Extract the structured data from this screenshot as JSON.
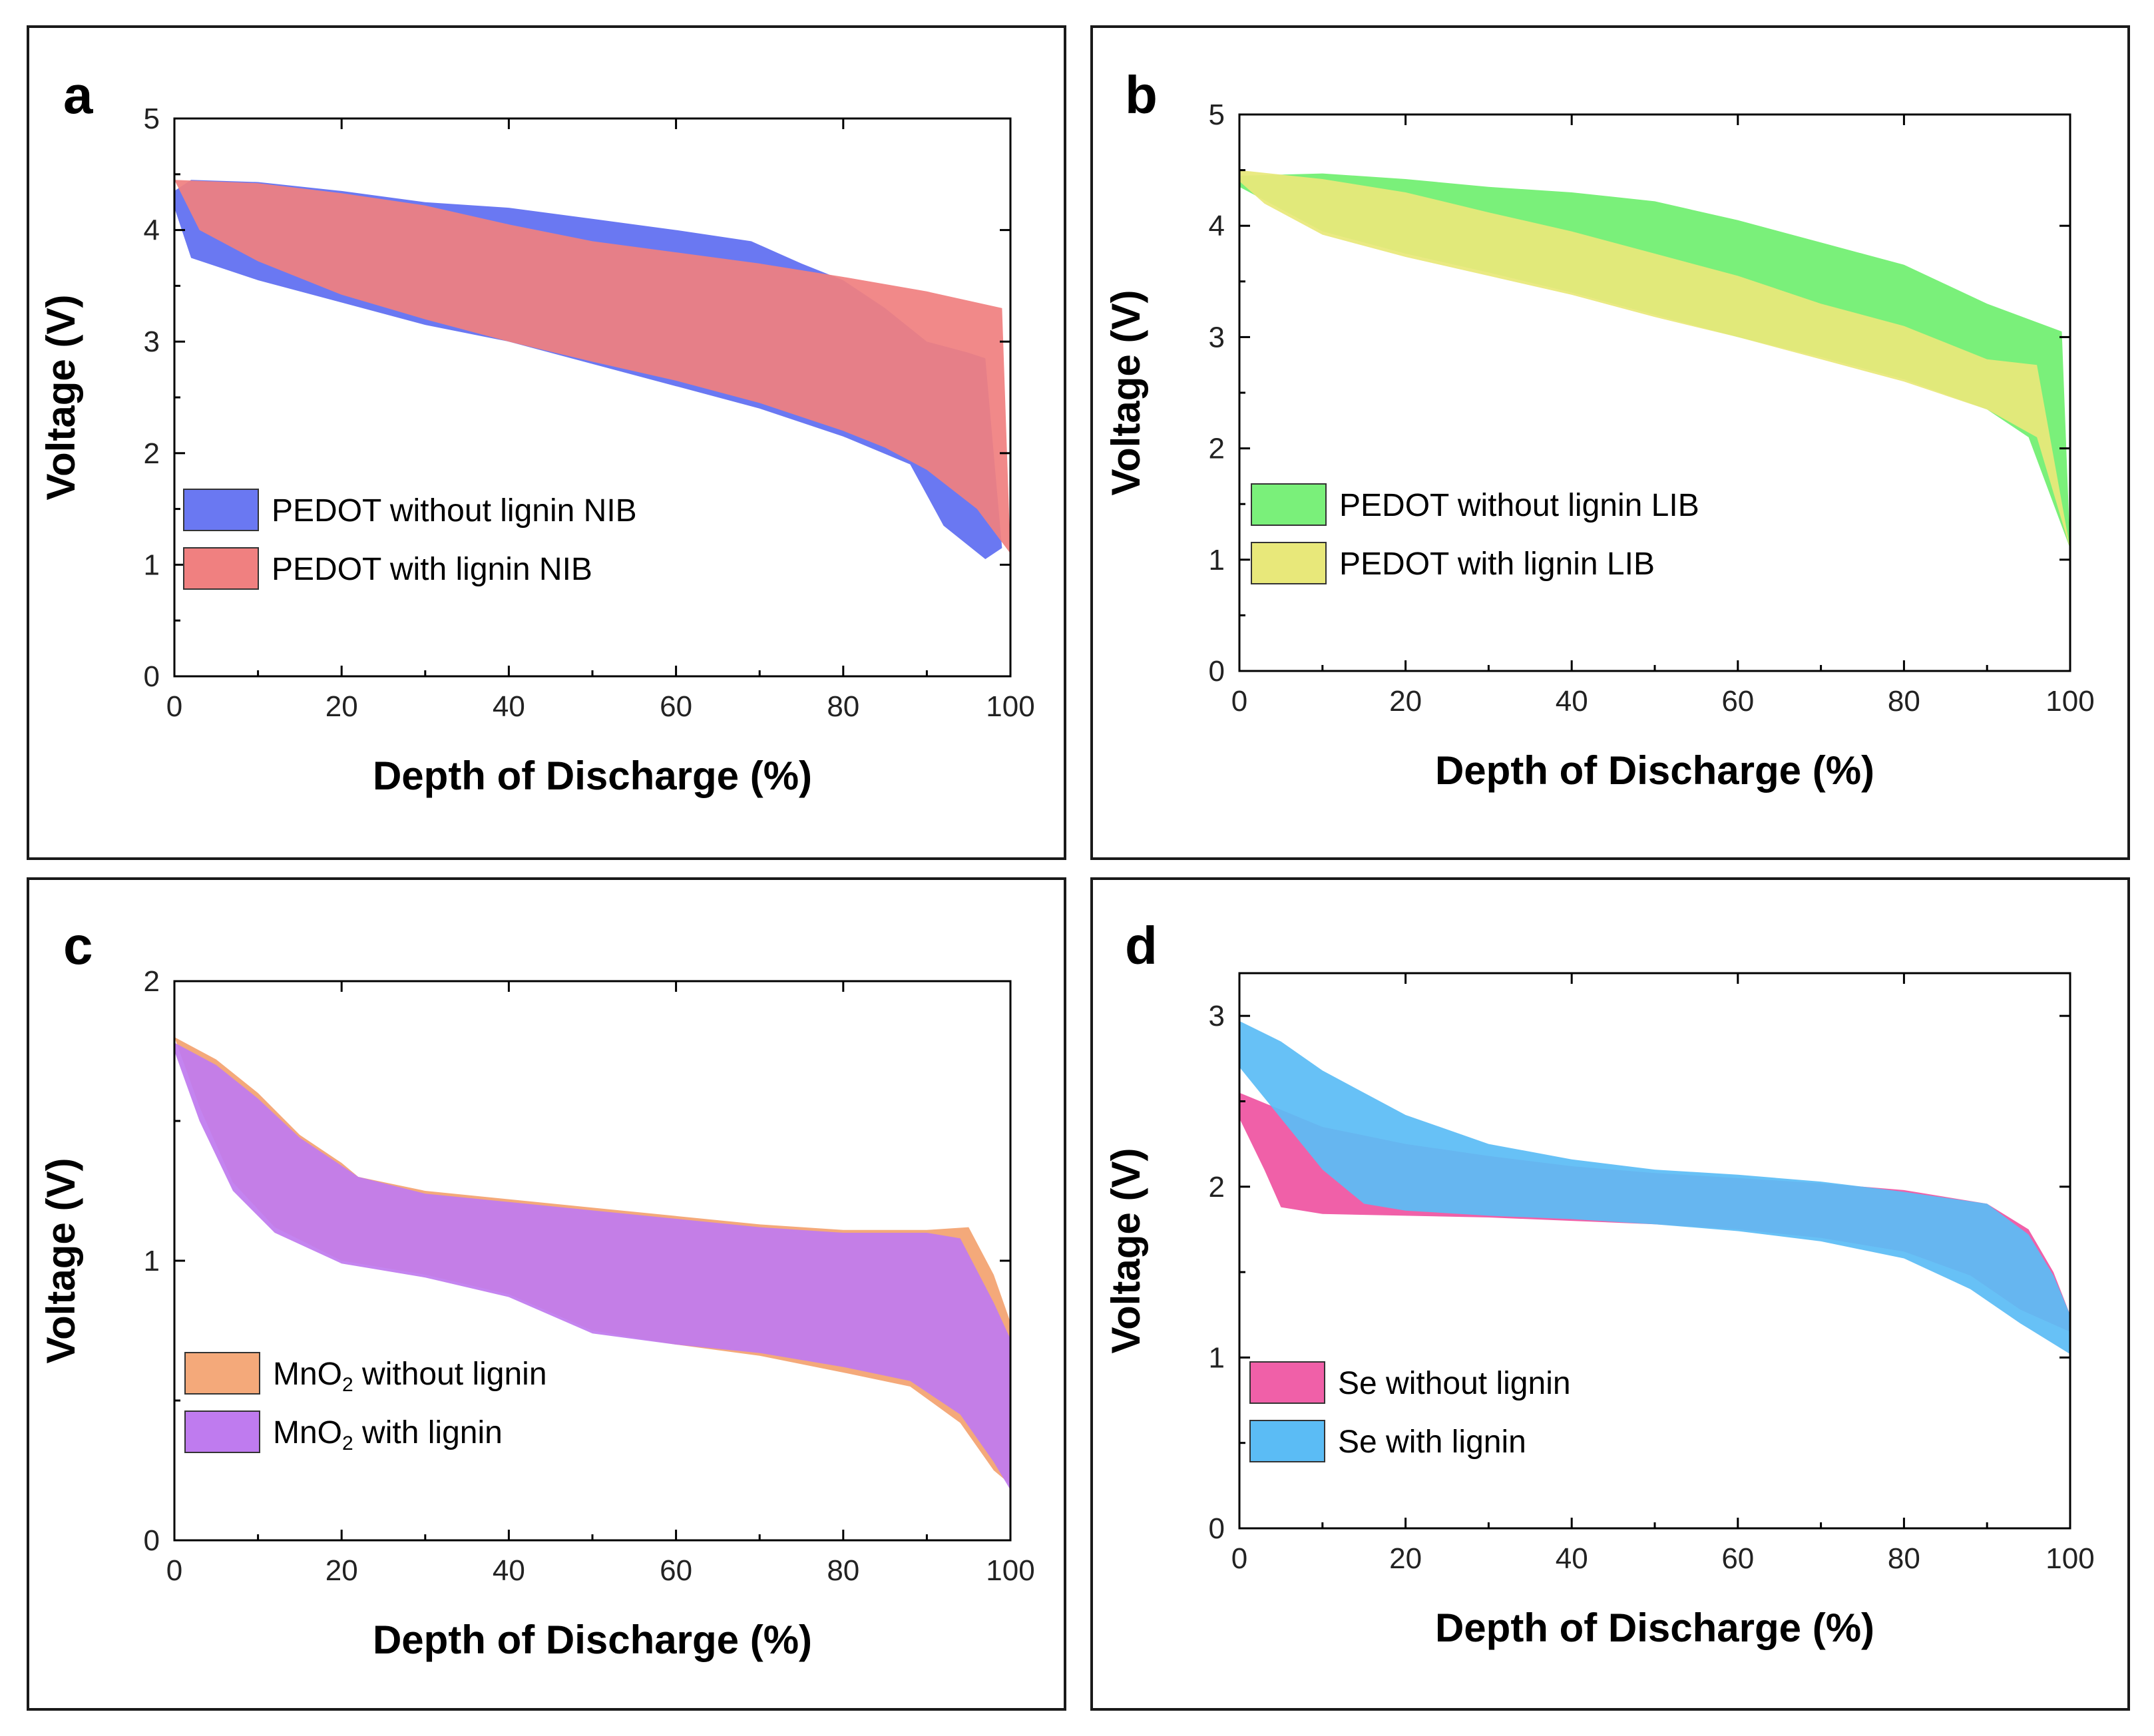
{
  "figure": {
    "panels": [
      "a",
      "b",
      "c",
      "d"
    ]
  },
  "chart_data": [
    {
      "panel": "a",
      "type": "area",
      "xlabel": "Depth of Discharge (%)",
      "ylabel": "Voltage (V)",
      "xlim": [
        0,
        100
      ],
      "ylim": [
        0,
        5
      ],
      "xticks": [
        0,
        20,
        40,
        60,
        80,
        100
      ],
      "yticks": [
        0,
        1,
        2,
        3,
        4,
        5
      ],
      "legend_position": "center-left",
      "series": [
        {
          "name": "PEDOT without lignin NIB",
          "color": "#6a78f2",
          "upper": [
            [
              0,
              4.35
            ],
            [
              2,
              4.45
            ],
            [
              10,
              4.43
            ],
            [
              20,
              4.35
            ],
            [
              30,
              4.25
            ],
            [
              40,
              4.2
            ],
            [
              50,
              4.1
            ],
            [
              60,
              4.0
            ],
            [
              69,
              3.9
            ],
            [
              75,
              3.7
            ],
            [
              80,
              3.55
            ],
            [
              85,
              3.3
            ],
            [
              90,
              3.0
            ],
            [
              95,
              2.9
            ],
            [
              97,
              2.85
            ],
            [
              99,
              1.15
            ]
          ],
          "lower": [
            [
              0,
              4.2
            ],
            [
              2,
              3.75
            ],
            [
              10,
              3.55
            ],
            [
              20,
              3.35
            ],
            [
              30,
              3.15
            ],
            [
              40,
              3.0
            ],
            [
              50,
              2.8
            ],
            [
              60,
              2.6
            ],
            [
              70,
              2.4
            ],
            [
              80,
              2.15
            ],
            [
              88,
              1.9
            ],
            [
              92,
              1.35
            ],
            [
              97,
              1.05
            ],
            [
              99,
              1.15
            ]
          ]
        },
        {
          "name": "PEDOT with lignin NIB",
          "color": "#f08080",
          "upper": [
            [
              0,
              4.45
            ],
            [
              10,
              4.42
            ],
            [
              20,
              4.33
            ],
            [
              30,
              4.22
            ],
            [
              40,
              4.05
            ],
            [
              50,
              3.9
            ],
            [
              60,
              3.8
            ],
            [
              70,
              3.7
            ],
            [
              80,
              3.58
            ],
            [
              90,
              3.45
            ],
            [
              99,
              3.3
            ],
            [
              100,
              1.1
            ]
          ],
          "lower": [
            [
              0,
              4.45
            ],
            [
              3,
              4.0
            ],
            [
              10,
              3.72
            ],
            [
              20,
              3.42
            ],
            [
              30,
              3.2
            ],
            [
              40,
              3.0
            ],
            [
              50,
              2.82
            ],
            [
              60,
              2.65
            ],
            [
              70,
              2.45
            ],
            [
              80,
              2.2
            ],
            [
              85,
              2.05
            ],
            [
              90,
              1.85
            ],
            [
              96,
              1.5
            ],
            [
              100,
              1.1
            ]
          ]
        }
      ]
    },
    {
      "panel": "b",
      "type": "area",
      "xlabel": "Depth of Discharge (%)",
      "ylabel": "Voltage (V)",
      "xlim": [
        0,
        100
      ],
      "ylim": [
        0,
        5
      ],
      "xticks": [
        0,
        20,
        40,
        60,
        80,
        100
      ],
      "yticks": [
        0,
        1,
        2,
        3,
        4,
        5
      ],
      "legend_position": "center-left",
      "series": [
        {
          "name": "PEDOT without lignin LIB",
          "color": "#7af07a",
          "upper": [
            [
              0,
              4.45
            ],
            [
              10,
              4.47
            ],
            [
              20,
              4.42
            ],
            [
              30,
              4.35
            ],
            [
              40,
              4.3
            ],
            [
              50,
              4.22
            ],
            [
              60,
              4.05
            ],
            [
              70,
              3.85
            ],
            [
              80,
              3.65
            ],
            [
              90,
              3.3
            ],
            [
              99,
              3.05
            ],
            [
              100,
              1.1
            ]
          ],
          "lower": [
            [
              0,
              4.35
            ],
            [
              5,
              4.15
            ],
            [
              10,
              3.95
            ],
            [
              20,
              3.75
            ],
            [
              30,
              3.58
            ],
            [
              40,
              3.4
            ],
            [
              50,
              3.2
            ],
            [
              60,
              3.0
            ],
            [
              70,
              2.82
            ],
            [
              80,
              2.62
            ],
            [
              90,
              2.35
            ],
            [
              95,
              2.1
            ],
            [
              100,
              1.1
            ]
          ]
        },
        {
          "name": "PEDOT with lignin LIB",
          "color": "#e8e87a",
          "upper": [
            [
              0,
              4.5
            ],
            [
              10,
              4.42
            ],
            [
              20,
              4.3
            ],
            [
              30,
              4.12
            ],
            [
              40,
              3.95
            ],
            [
              50,
              3.75
            ],
            [
              60,
              3.55
            ],
            [
              70,
              3.3
            ],
            [
              80,
              3.1
            ],
            [
              90,
              2.8
            ],
            [
              96,
              2.75
            ],
            [
              100,
              1.1
            ]
          ],
          "lower": [
            [
              0,
              4.4
            ],
            [
              3,
              4.2
            ],
            [
              10,
              3.92
            ],
            [
              20,
              3.72
            ],
            [
              30,
              3.55
            ],
            [
              40,
              3.38
            ],
            [
              50,
              3.18
            ],
            [
              60,
              3.0
            ],
            [
              70,
              2.8
            ],
            [
              80,
              2.6
            ],
            [
              90,
              2.35
            ],
            [
              96,
              2.1
            ],
            [
              100,
              1.1
            ]
          ]
        }
      ]
    },
    {
      "panel": "c",
      "type": "area",
      "xlabel": "Depth of Discharge (%)",
      "ylabel": "Voltage (V)",
      "xlim": [
        0,
        100
      ],
      "ylim": [
        0,
        2
      ],
      "xticks": [
        0,
        20,
        40,
        60,
        80,
        100
      ],
      "yticks": [
        0,
        1,
        2
      ],
      "legend_position": "bottom-left",
      "series": [
        {
          "name": "MnO₂ without lignin",
          "color": "#f4a97a",
          "upper": [
            [
              0,
              1.8
            ],
            [
              5,
              1.72
            ],
            [
              10,
              1.6
            ],
            [
              15,
              1.45
            ],
            [
              20,
              1.35
            ],
            [
              22,
              1.3
            ],
            [
              30,
              1.25
            ],
            [
              40,
              1.22
            ],
            [
              50,
              1.19
            ],
            [
              60,
              1.16
            ],
            [
              70,
              1.13
            ],
            [
              80,
              1.11
            ],
            [
              90,
              1.11
            ],
            [
              95,
              1.12
            ],
            [
              98,
              0.95
            ],
            [
              100,
              0.78
            ]
          ],
          "lower": [
            [
              0,
              1.8
            ],
            [
              3,
              1.55
            ],
            [
              7,
              1.28
            ],
            [
              12,
              1.12
            ],
            [
              20,
              1.0
            ],
            [
              30,
              0.95
            ],
            [
              40,
              0.88
            ],
            [
              50,
              0.75
            ],
            [
              60,
              0.7
            ],
            [
              70,
              0.66
            ],
            [
              80,
              0.6
            ],
            [
              88,
              0.55
            ],
            [
              94,
              0.42
            ],
            [
              98,
              0.25
            ],
            [
              100,
              0.2
            ]
          ]
        },
        {
          "name": "MnO₂ with lignin",
          "color": "#bf7bef",
          "upper": [
            [
              0,
              1.78
            ],
            [
              5,
              1.7
            ],
            [
              10,
              1.58
            ],
            [
              15,
              1.44
            ],
            [
              20,
              1.34
            ],
            [
              22,
              1.3
            ],
            [
              30,
              1.24
            ],
            [
              40,
              1.21
            ],
            [
              50,
              1.18
            ],
            [
              60,
              1.15
            ],
            [
              70,
              1.12
            ],
            [
              80,
              1.1
            ],
            [
              90,
              1.1
            ],
            [
              94,
              1.08
            ],
            [
              98,
              0.85
            ],
            [
              100,
              0.72
            ]
          ],
          "lower": [
            [
              0,
              1.75
            ],
            [
              3,
              1.5
            ],
            [
              7,
              1.25
            ],
            [
              12,
              1.1
            ],
            [
              20,
              0.99
            ],
            [
              30,
              0.94
            ],
            [
              40,
              0.87
            ],
            [
              50,
              0.74
            ],
            [
              60,
              0.7
            ],
            [
              70,
              0.67
            ],
            [
              80,
              0.62
            ],
            [
              88,
              0.57
            ],
            [
              94,
              0.45
            ],
            [
              98,
              0.28
            ],
            [
              100,
              0.18
            ]
          ]
        }
      ]
    },
    {
      "panel": "d",
      "type": "area",
      "xlabel": "Depth of Discharge (%)",
      "ylabel": "Voltage (V)",
      "xlim": [
        0,
        100
      ],
      "ylim": [
        0,
        3.25
      ],
      "xticks": [
        0,
        20,
        40,
        60,
        80,
        100
      ],
      "yticks": [
        0,
        1,
        2,
        3
      ],
      "legend_position": "bottom-left",
      "series": [
        {
          "name": "Se without lignin",
          "color": "#f060a8",
          "upper": [
            [
              0,
              2.55
            ],
            [
              5,
              2.45
            ],
            [
              10,
              2.35
            ],
            [
              20,
              2.25
            ],
            [
              30,
              2.18
            ],
            [
              40,
              2.12
            ],
            [
              50,
              2.08
            ],
            [
              60,
              2.05
            ],
            [
              70,
              2.02
            ],
            [
              80,
              1.98
            ],
            [
              90,
              1.9
            ],
            [
              95,
              1.75
            ],
            [
              98,
              1.5
            ],
            [
              100,
              1.25
            ]
          ],
          "lower": [
            [
              0,
              2.4
            ],
            [
              3,
              2.1
            ],
            [
              5,
              1.88
            ],
            [
              10,
              1.84
            ],
            [
              20,
              1.83
            ],
            [
              30,
              1.82
            ],
            [
              40,
              1.8
            ],
            [
              50,
              1.78
            ],
            [
              60,
              1.75
            ],
            [
              70,
              1.7
            ],
            [
              80,
              1.62
            ],
            [
              88,
              1.48
            ],
            [
              94,
              1.28
            ],
            [
              100,
              1.15
            ]
          ]
        },
        {
          "name": "Se with lignin",
          "color": "#5bbcf5",
          "upper": [
            [
              0,
              2.97
            ],
            [
              5,
              2.85
            ],
            [
              10,
              2.68
            ],
            [
              20,
              2.42
            ],
            [
              30,
              2.25
            ],
            [
              40,
              2.16
            ],
            [
              50,
              2.1
            ],
            [
              60,
              2.07
            ],
            [
              70,
              2.03
            ],
            [
              80,
              1.97
            ],
            [
              90,
              1.9
            ],
            [
              95,
              1.72
            ],
            [
              98,
              1.48
            ],
            [
              100,
              1.25
            ]
          ],
          "lower": [
            [
              0,
              2.7
            ],
            [
              5,
              2.4
            ],
            [
              10,
              2.1
            ],
            [
              15,
              1.9
            ],
            [
              20,
              1.86
            ],
            [
              30,
              1.83
            ],
            [
              40,
              1.81
            ],
            [
              50,
              1.78
            ],
            [
              60,
              1.74
            ],
            [
              70,
              1.68
            ],
            [
              80,
              1.58
            ],
            [
              88,
              1.4
            ],
            [
              94,
              1.2
            ],
            [
              100,
              1.02
            ]
          ]
        }
      ]
    }
  ]
}
